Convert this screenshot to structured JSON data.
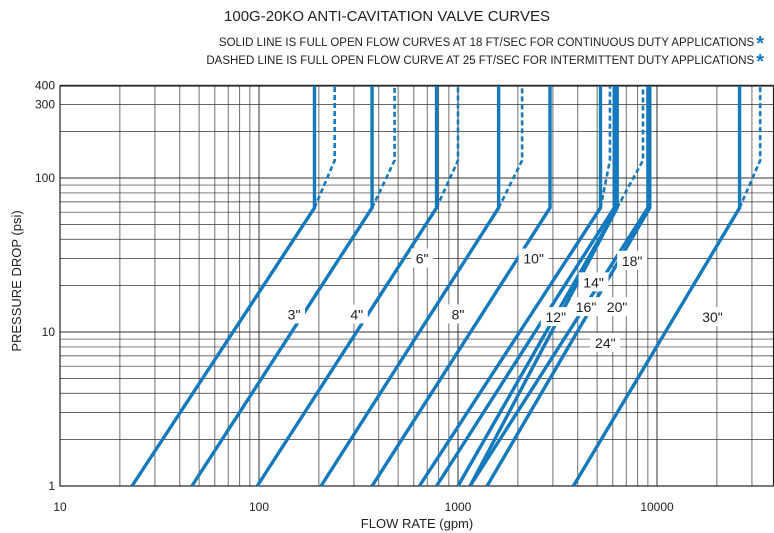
{
  "chart_data": {
    "type": "line",
    "title": "100G-20KO ANTI-CAVITATION VALVE CURVES",
    "notes": [
      "SOLID LINE IS FULL OPEN FLOW CURVES AT 18 FT/SEC FOR CONTINUOUS DUTY APPLICATIONS",
      "DASHED LINE IS FULL OPEN FLOW CURVE AT 25 FT/SEC FOR INTERMITTENT DUTY APPLICATIONS"
    ],
    "xlabel": "FLOW RATE (gpm)",
    "ylabel": "PRESSURE DROP (psi)",
    "xscale": "log",
    "yscale": "log",
    "xlim": [
      10,
      50000
    ],
    "ylim": [
      1,
      400
    ],
    "xticks": [
      "10",
      "100",
      "1000",
      "10000"
    ],
    "yticks": [
      "1",
      "10",
      "100",
      "300",
      "400"
    ],
    "grid": true,
    "line_color": "#1479bd",
    "series": [
      {
        "name": "3\"",
        "q1": 23,
        "solid_max": 190,
        "dashed_max": 240
      },
      {
        "name": "4\"",
        "q1": 46,
        "solid_max": 370,
        "dashed_max": 480
      },
      {
        "name": "6\"",
        "q1": 98,
        "solid_max": 780,
        "dashed_max": 1000
      },
      {
        "name": "8\"",
        "q1": 205,
        "solid_max": 1600,
        "dashed_max": 2100
      },
      {
        "name": "10\"",
        "q1": 370,
        "solid_max": 2900,
        "dashed_max": 2900
      },
      {
        "name": "12\"",
        "q1": 640,
        "solid_max": 5200,
        "dashed_max": 5800
      },
      {
        "name": "14\"",
        "q1": 780,
        "solid_max": 6100,
        "dashed_max": 6100
      },
      {
        "name": "16\"",
        "q1": 1000,
        "solid_max": 6300,
        "dashed_max": 8500
      },
      {
        "name": "18\"",
        "q1": 1150,
        "solid_max": 9000,
        "dashed_max": 9000
      },
      {
        "name": "20\"",
        "q1": 1150,
        "solid_max": 6300,
        "dashed_max": 6300
      },
      {
        "name": "24\"",
        "q1": 1400,
        "solid_max": 9200,
        "dashed_max": 9200
      },
      {
        "name": "30\"",
        "q1": 3800,
        "solid_max": 26000,
        "dashed_max": 33000
      }
    ],
    "annotations": [
      {
        "text": "3\"",
        "x": 150,
        "y": 13
      },
      {
        "text": "4\"",
        "x": 310,
        "y": 13
      },
      {
        "text": "6\"",
        "x": 660,
        "y": 30
      },
      {
        "text": "8\"",
        "x": 1000,
        "y": 13
      },
      {
        "text": "10\"",
        "x": 2400,
        "y": 30
      },
      {
        "text": "12\"",
        "x": 3100,
        "y": 12.5
      },
      {
        "text": "14\"",
        "x": 4800,
        "y": 21
      },
      {
        "text": "16\"",
        "x": 4400,
        "y": 14.5
      },
      {
        "text": "18\"",
        "x": 7500,
        "y": 29
      },
      {
        "text": "20\"",
        "x": 6300,
        "y": 14.5
      },
      {
        "text": "24\"",
        "x": 5500,
        "y": 8.5
      },
      {
        "text": "30\"",
        "x": 19000,
        "y": 12.5
      }
    ]
  }
}
